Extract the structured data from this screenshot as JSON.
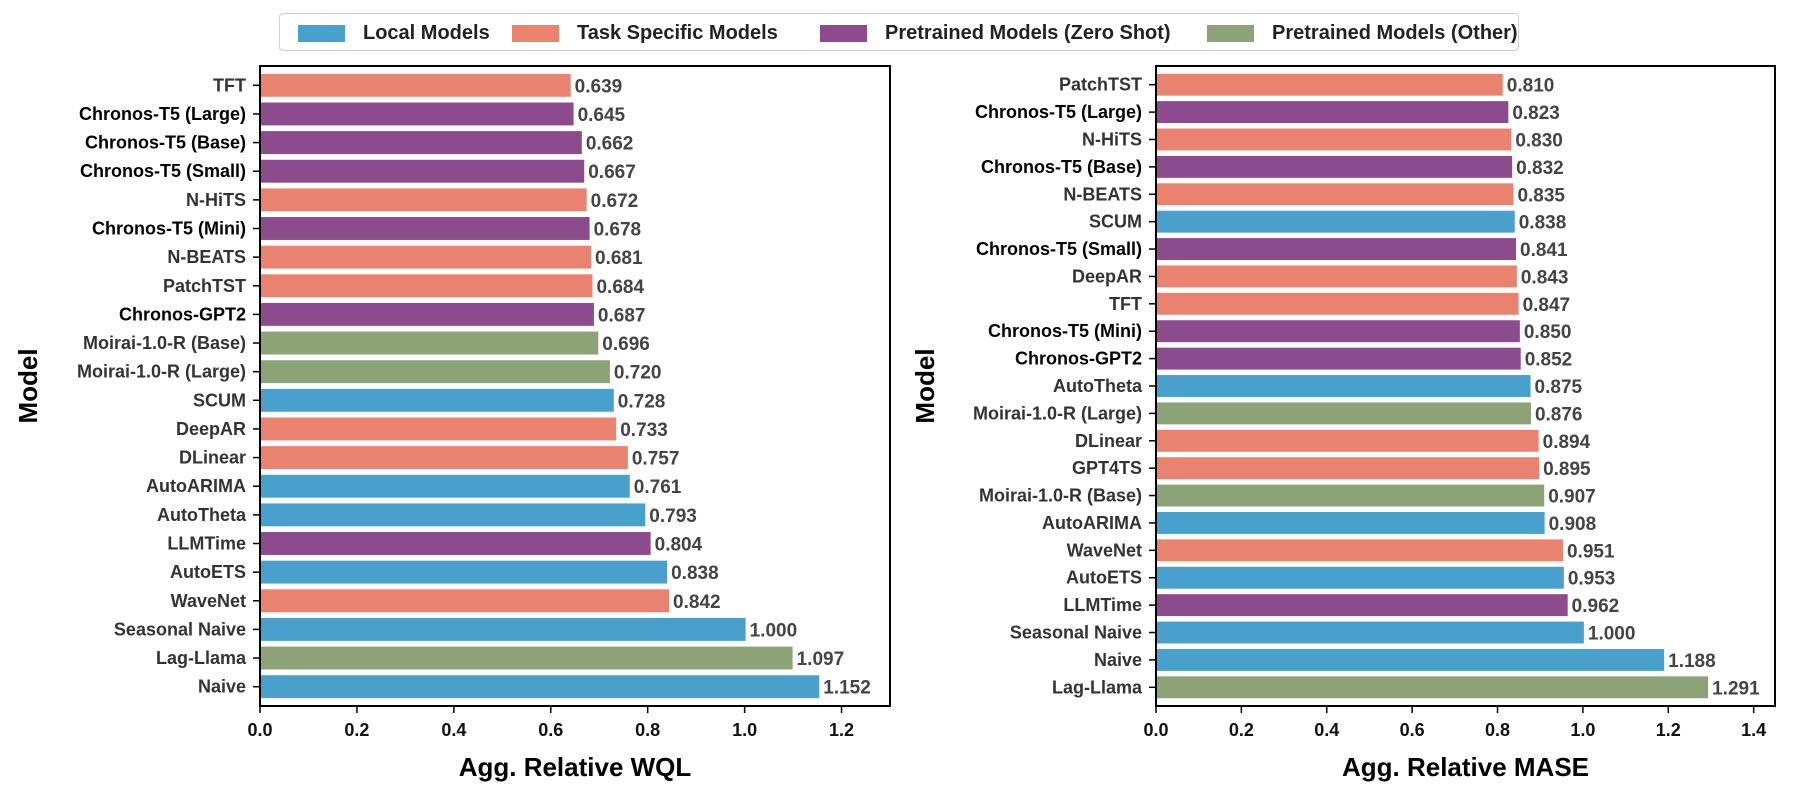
{
  "legend": [
    {
      "key": "local",
      "label": "Local Models",
      "color": "#4aa0cc"
    },
    {
      "key": "task",
      "label": "Task Specific Models",
      "color": "#e9826e"
    },
    {
      "key": "zero",
      "label": "Pretrained Models (Zero Shot)",
      "color": "#8c4b8c"
    },
    {
      "key": "other",
      "label": "Pretrained Models (Other)",
      "color": "#8ca377"
    }
  ],
  "chart_data": [
    {
      "type": "bar",
      "orientation": "horizontal",
      "xlabel": "Agg. Relative WQL",
      "ylabel": "Model",
      "xlim": [
        0,
        1.3
      ],
      "xticks": [
        "0.0",
        "0.2",
        "0.4",
        "0.6",
        "0.8",
        "1.0",
        "1.2"
      ],
      "bars": [
        {
          "label": "TFT",
          "value": 0.639,
          "value_label": "0.639",
          "group": "task",
          "bold": false
        },
        {
          "label": "Chronos-T5 (Large)",
          "value": 0.645,
          "value_label": "0.645",
          "group": "zero",
          "bold": true
        },
        {
          "label": "Chronos-T5 (Base)",
          "value": 0.662,
          "value_label": "0.662",
          "group": "zero",
          "bold": true
        },
        {
          "label": "Chronos-T5 (Small)",
          "value": 0.667,
          "value_label": "0.667",
          "group": "zero",
          "bold": true
        },
        {
          "label": "N-HiTS",
          "value": 0.672,
          "value_label": "0.672",
          "group": "task",
          "bold": false
        },
        {
          "label": "Chronos-T5 (Mini)",
          "value": 0.678,
          "value_label": "0.678",
          "group": "zero",
          "bold": true
        },
        {
          "label": "N-BEATS",
          "value": 0.681,
          "value_label": "0.681",
          "group": "task",
          "bold": false
        },
        {
          "label": "PatchTST",
          "value": 0.684,
          "value_label": "0.684",
          "group": "task",
          "bold": false
        },
        {
          "label": "Chronos-GPT2",
          "value": 0.687,
          "value_label": "0.687",
          "group": "zero",
          "bold": true
        },
        {
          "label": "Moirai-1.0-R (Base)",
          "value": 0.696,
          "value_label": "0.696",
          "group": "other",
          "bold": false
        },
        {
          "label": "Moirai-1.0-R (Large)",
          "value": 0.72,
          "value_label": "0.720",
          "group": "other",
          "bold": false
        },
        {
          "label": "SCUM",
          "value": 0.728,
          "value_label": "0.728",
          "group": "local",
          "bold": false
        },
        {
          "label": "DeepAR",
          "value": 0.733,
          "value_label": "0.733",
          "group": "task",
          "bold": false
        },
        {
          "label": "DLinear",
          "value": 0.757,
          "value_label": "0.757",
          "group": "task",
          "bold": false
        },
        {
          "label": "AutoARIMA",
          "value": 0.761,
          "value_label": "0.761",
          "group": "local",
          "bold": false
        },
        {
          "label": "AutoTheta",
          "value": 0.793,
          "value_label": "0.793",
          "group": "local",
          "bold": false
        },
        {
          "label": "LLMTime",
          "value": 0.804,
          "value_label": "0.804",
          "group": "zero",
          "bold": false
        },
        {
          "label": "AutoETS",
          "value": 0.838,
          "value_label": "0.838",
          "group": "local",
          "bold": false
        },
        {
          "label": "WaveNet",
          "value": 0.842,
          "value_label": "0.842",
          "group": "task",
          "bold": false
        },
        {
          "label": "Seasonal Naive",
          "value": 1.0,
          "value_label": "1.000",
          "group": "local",
          "bold": false
        },
        {
          "label": "Lag-Llama",
          "value": 1.097,
          "value_label": "1.097",
          "group": "other",
          "bold": false
        },
        {
          "label": "Naive",
          "value": 1.152,
          "value_label": "1.152",
          "group": "local",
          "bold": false
        }
      ]
    },
    {
      "type": "bar",
      "orientation": "horizontal",
      "xlabel": "Agg. Relative MASE",
      "ylabel": "Model",
      "xlim": [
        0,
        1.45
      ],
      "xticks": [
        "0.0",
        "0.2",
        "0.4",
        "0.6",
        "0.8",
        "1.0",
        "1.2",
        "1.4"
      ],
      "bars": [
        {
          "label": "PatchTST",
          "value": 0.81,
          "value_label": "0.810",
          "group": "task",
          "bold": false
        },
        {
          "label": "Chronos-T5 (Large)",
          "value": 0.823,
          "value_label": "0.823",
          "group": "zero",
          "bold": true
        },
        {
          "label": "N-HiTS",
          "value": 0.83,
          "value_label": "0.830",
          "group": "task",
          "bold": false
        },
        {
          "label": "Chronos-T5 (Base)",
          "value": 0.832,
          "value_label": "0.832",
          "group": "zero",
          "bold": true
        },
        {
          "label": "N-BEATS",
          "value": 0.835,
          "value_label": "0.835",
          "group": "task",
          "bold": false
        },
        {
          "label": "SCUM",
          "value": 0.838,
          "value_label": "0.838",
          "group": "local",
          "bold": false
        },
        {
          "label": "Chronos-T5 (Small)",
          "value": 0.841,
          "value_label": "0.841",
          "group": "zero",
          "bold": true
        },
        {
          "label": "DeepAR",
          "value": 0.843,
          "value_label": "0.843",
          "group": "task",
          "bold": false
        },
        {
          "label": "TFT",
          "value": 0.847,
          "value_label": "0.847",
          "group": "task",
          "bold": false
        },
        {
          "label": "Chronos-T5 (Mini)",
          "value": 0.85,
          "value_label": "0.850",
          "group": "zero",
          "bold": true
        },
        {
          "label": "Chronos-GPT2",
          "value": 0.852,
          "value_label": "0.852",
          "group": "zero",
          "bold": true
        },
        {
          "label": "AutoTheta",
          "value": 0.875,
          "value_label": "0.875",
          "group": "local",
          "bold": false
        },
        {
          "label": "Moirai-1.0-R (Large)",
          "value": 0.876,
          "value_label": "0.876",
          "group": "other",
          "bold": false
        },
        {
          "label": "DLinear",
          "value": 0.894,
          "value_label": "0.894",
          "group": "task",
          "bold": false
        },
        {
          "label": "GPT4TS",
          "value": 0.895,
          "value_label": "0.895",
          "group": "task",
          "bold": false
        },
        {
          "label": "Moirai-1.0-R (Base)",
          "value": 0.907,
          "value_label": "0.907",
          "group": "other",
          "bold": false
        },
        {
          "label": "AutoARIMA",
          "value": 0.908,
          "value_label": "0.908",
          "group": "local",
          "bold": false
        },
        {
          "label": "WaveNet",
          "value": 0.951,
          "value_label": "0.951",
          "group": "task",
          "bold": false
        },
        {
          "label": "AutoETS",
          "value": 0.953,
          "value_label": "0.953",
          "group": "local",
          "bold": false
        },
        {
          "label": "LLMTime",
          "value": 0.962,
          "value_label": "0.962",
          "group": "zero",
          "bold": false
        },
        {
          "label": "Seasonal Naive",
          "value": 1.0,
          "value_label": "1.000",
          "group": "local",
          "bold": false
        },
        {
          "label": "Naive",
          "value": 1.188,
          "value_label": "1.188",
          "group": "local",
          "bold": false
        },
        {
          "label": "Lag-Llama",
          "value": 1.291,
          "value_label": "1.291",
          "group": "other",
          "bold": false
        }
      ]
    }
  ]
}
